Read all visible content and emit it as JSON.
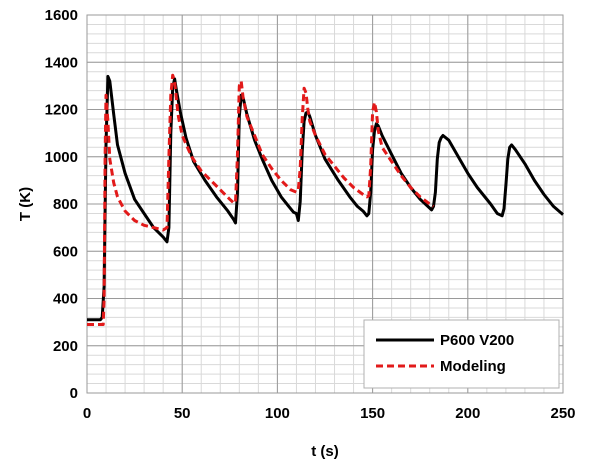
{
  "chart_data": {
    "type": "line",
    "xlabel": "t (s)",
    "ylabel": "T (K)",
    "xlim": [
      0,
      250
    ],
    "ylim": [
      0,
      1600
    ],
    "xticks": [
      0,
      50,
      100,
      150,
      200,
      250
    ],
    "yticks": [
      0,
      200,
      400,
      600,
      800,
      1000,
      1200,
      1400,
      1600
    ],
    "grid": true,
    "legend_position": "bottom-right",
    "series": [
      {
        "name": "P600 V200",
        "color": "#000000",
        "dash": "solid",
        "x": [
          0,
          7,
          8,
          9,
          10,
          11,
          12,
          14,
          16,
          20,
          25,
          30,
          35,
          40,
          42,
          43,
          44,
          45,
          46,
          47,
          49,
          52,
          56,
          62,
          68,
          74,
          77,
          78,
          79,
          80,
          81,
          82,
          84,
          88,
          92,
          97,
          102,
          106,
          108.5,
          110,
          111,
          112,
          113,
          114,
          115,
          116,
          117,
          120,
          125,
          132,
          138,
          142,
          145,
          147,
          148,
          149,
          150,
          151,
          152,
          153,
          155,
          160,
          165,
          170,
          175,
          181,
          182,
          183,
          184,
          185,
          186,
          187,
          190,
          195,
          200,
          205,
          212,
          215.5,
          218,
          219,
          220,
          221,
          222,
          223,
          225,
          230,
          235,
          240,
          245,
          250
        ],
        "y": [
          310,
          310,
          320,
          450,
          1050,
          1340,
          1320,
          1180,
          1050,
          930,
          820,
          760,
          700,
          660,
          640,
          700,
          1100,
          1290,
          1330,
          1280,
          1190,
          1080,
          980,
          900,
          830,
          770,
          735,
          720,
          840,
          1170,
          1260,
          1250,
          1180,
          1070,
          990,
          900,
          830,
          790,
          765,
          760,
          730,
          810,
          1020,
          1150,
          1185,
          1190,
          1170,
          1090,
          990,
          900,
          830,
          790,
          770,
          750,
          760,
          850,
          1030,
          1110,
          1140,
          1130,
          1090,
          1010,
          930,
          870,
          820,
          775,
          790,
          850,
          990,
          1060,
          1080,
          1090,
          1070,
          1000,
          930,
          870,
          800,
          760,
          750,
          780,
          880,
          990,
          1040,
          1050,
          1030,
          970,
          900,
          840,
          790,
          755
        ]
      },
      {
        "name": "Modeling",
        "color": "#e21a1a",
        "dash": "dashed",
        "x": [
          0,
          8.5,
          9,
          9.5,
          10,
          11,
          12,
          14,
          16,
          20,
          25,
          30,
          35,
          40,
          42,
          43,
          44,
          45,
          46,
          47,
          48,
          50,
          55,
          60,
          65,
          70,
          75,
          77,
          78,
          79,
          80,
          81,
          82,
          84,
          88,
          92,
          97,
          102,
          107,
          110,
          111,
          112,
          113,
          114,
          115,
          116,
          117,
          120,
          125,
          130,
          135,
          140,
          145,
          147,
          148,
          149,
          150,
          151,
          152,
          153,
          155,
          160,
          165,
          170,
          175,
          180,
          182
        ],
        "y": [
          290,
          290,
          400,
          1000,
          1260,
          1150,
          990,
          890,
          830,
          770,
          730,
          710,
          700,
          690,
          700,
          1000,
          1260,
          1345,
          1320,
          1240,
          1170,
          1090,
          1000,
          940,
          900,
          860,
          820,
          805,
          805,
          1000,
          1300,
          1320,
          1250,
          1170,
          1090,
          1010,
          950,
          900,
          860,
          850,
          860,
          950,
          1160,
          1290,
          1270,
          1200,
          1150,
          1090,
          1010,
          960,
          910,
          870,
          840,
          830,
          835,
          960,
          1190,
          1230,
          1190,
          1110,
          1040,
          980,
          920,
          870,
          830,
          800,
          790
        ]
      }
    ]
  }
}
